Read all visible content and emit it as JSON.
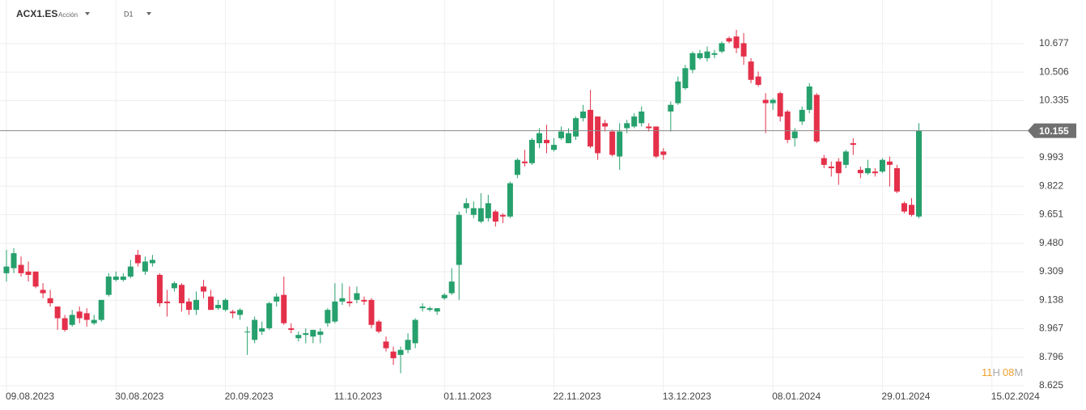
{
  "header": {
    "symbol": "ACX1.ES",
    "instrument_type": "Acción",
    "timeframe": "D1"
  },
  "countdown": {
    "hours": "11",
    "hours_unit": "H",
    "minutes": "08",
    "minutes_unit": "M"
  },
  "chart_data": {
    "type": "candlestick",
    "categories": [
      "09.08.2023",
      null,
      null,
      null,
      null,
      null,
      null,
      null,
      null,
      null,
      null,
      null,
      null,
      null,
      null,
      "30.08.2023",
      null,
      null,
      null,
      null,
      null,
      null,
      null,
      null,
      null,
      null,
      null,
      null,
      null,
      null,
      "20.09.2023",
      null,
      null,
      null,
      null,
      null,
      null,
      null,
      null,
      null,
      null,
      null,
      null,
      null,
      null,
      "11.10.2023",
      null,
      null,
      null,
      null,
      null,
      null,
      null,
      null,
      null,
      null,
      null,
      null,
      null,
      null,
      "01.11.2023",
      null,
      null,
      null,
      null,
      null,
      null,
      null,
      null,
      null,
      null,
      null,
      null,
      null,
      null,
      "22.11.2023",
      null,
      null,
      null,
      null,
      null,
      null,
      null,
      null,
      null,
      null,
      null,
      null,
      null,
      null,
      "13.12.2023",
      null,
      null,
      null,
      null,
      null,
      null,
      null,
      null,
      null,
      null,
      null,
      null,
      null,
      null,
      "08.01.2024",
      null,
      null,
      null,
      null,
      null,
      null,
      null,
      null,
      null,
      null,
      null,
      null,
      null,
      null,
      "29.01.2024",
      null,
      null,
      null,
      null,
      null,
      null,
      null,
      null,
      null,
      null,
      null,
      null,
      null,
      null,
      "15.02.2024"
    ],
    "open": [
      9.3,
      9.33,
      9.35,
      9.31,
      9.31,
      9.2,
      9.15,
      9.1,
      9.03,
      8.99,
      9.07,
      9.06,
      9.0,
      9.02,
      9.17,
      9.26,
      9.26,
      9.28,
      9.41,
      9.31,
      9.36,
      9.29,
      9.13,
      9.21,
      9.23,
      9.13,
      9.08,
      9.22,
      9.16,
      9.09,
      9.08,
      9.07,
      9.05,
      8.95,
      8.9,
      8.95,
      8.97,
      9.13,
      9.17,
      8.97,
      8.91,
      8.93,
      8.92,
      8.93,
      9.0,
      9.01,
      9.13,
      9.13,
      9.14,
      9.14,
      9.14,
      9.01,
      8.89,
      8.83,
      8.81,
      8.84,
      8.88,
      9.09,
      9.08,
      9.07,
      9.15,
      9.18,
      9.35,
      9.69,
      9.65,
      9.61,
      9.63,
      9.67,
      9.65,
      9.64,
      9.89,
      9.97,
      9.96,
      10.08,
      10.1,
      10.04,
      10.11,
      10.08,
      10.12,
      10.23,
      10.28,
      10.24,
      10.2,
      10.15,
      10.0,
      10.17,
      10.18,
      10.2,
      10.18,
      10.18,
      10.03,
      10.27,
      10.32,
      10.41,
      10.52,
      10.59,
      10.59,
      10.61,
      10.63,
      10.71,
      10.72,
      10.68,
      10.57,
      10.48,
      10.34,
      10.32,
      10.38,
      10.27,
      10.11,
      10.21,
      10.28,
      10.37,
      9.99,
      9.94,
      9.97,
      9.95,
      10.08,
      9.92,
      9.9,
      9.91,
      9.91,
      9.97,
      9.93,
      9.72,
      9.71,
      9.64,
      null,
      null,
      null,
      null,
      null,
      null,
      null,
      null,
      null,
      null
    ],
    "high": [
      9.44,
      9.45,
      9.4,
      9.37,
      9.31,
      9.24,
      9.2,
      9.1,
      9.05,
      9.08,
      9.1,
      9.09,
      9.05,
      9.14,
      9.3,
      9.31,
      9.3,
      9.38,
      9.44,
      9.4,
      9.41,
      9.3,
      9.2,
      9.25,
      9.24,
      9.15,
      9.19,
      9.26,
      9.2,
      9.14,
      9.15,
      9.08,
      9.09,
      8.98,
      9.04,
      9.01,
      9.13,
      9.18,
      9.28,
      9.0,
      8.95,
      8.97,
      8.96,
      8.97,
      9.09,
      9.24,
      9.24,
      9.22,
      9.22,
      9.16,
      9.15,
      9.02,
      8.92,
      8.86,
      8.86,
      8.94,
      9.03,
      9.12,
      9.1,
      9.09,
      9.18,
      9.33,
      9.67,
      9.75,
      9.73,
      9.78,
      9.77,
      9.68,
      9.66,
      9.85,
      9.99,
      10.04,
      10.11,
      10.17,
      10.19,
      10.11,
      10.18,
      10.17,
      10.24,
      10.31,
      10.4,
      10.24,
      10.22,
      10.16,
      10.2,
      10.22,
      10.26,
      10.3,
      10.2,
      10.18,
      10.05,
      10.33,
      10.48,
      10.55,
      10.63,
      10.64,
      10.66,
      10.64,
      10.69,
      10.72,
      10.76,
      10.74,
      10.59,
      10.51,
      10.38,
      10.35,
      10.39,
      10.28,
      10.17,
      10.3,
      10.44,
      10.38,
      10.01,
      9.97,
      9.99,
      10.04,
      10.11,
      9.94,
      9.98,
      9.93,
      9.99,
      10.0,
      9.95,
      9.73,
      9.75,
      10.2,
      null,
      null,
      null,
      null,
      null,
      null,
      null,
      null,
      null,
      null
    ],
    "low": [
      9.25,
      9.3,
      9.28,
      9.25,
      9.21,
      9.15,
      9.1,
      8.96,
      8.95,
      8.98,
      9.0,
      8.98,
      8.99,
      9.01,
      9.16,
      9.25,
      9.25,
      9.27,
      9.34,
      9.29,
      9.34,
      9.1,
      9.04,
      9.19,
      9.07,
      9.05,
      9.05,
      9.15,
      9.08,
      9.08,
      9.07,
      9.03,
      9.02,
      8.81,
      8.88,
      8.93,
      8.96,
      9.1,
      8.99,
      8.94,
      8.89,
      8.88,
      8.88,
      8.88,
      8.98,
      9.0,
      9.11,
      9.1,
      9.12,
      9.11,
      8.97,
      8.94,
      8.83,
      8.75,
      8.7,
      8.82,
      8.85,
      9.07,
      9.07,
      9.05,
      9.14,
      9.17,
      9.14,
      9.66,
      9.63,
      9.6,
      9.61,
      9.58,
      9.6,
      9.63,
      9.87,
      9.94,
      9.95,
      10.05,
      10.02,
      10.03,
      10.1,
      10.08,
      10.1,
      10.21,
      10.05,
      9.98,
      10.15,
      10.0,
      9.92,
      10.14,
      10.17,
      10.18,
      10.15,
      9.99,
      9.98,
      10.15,
      10.31,
      10.4,
      10.5,
      10.58,
      10.57,
      10.59,
      10.62,
      10.68,
      10.62,
      10.55,
      10.44,
      10.42,
      10.14,
      10.28,
      10.21,
      10.08,
      10.06,
      10.19,
      10.26,
      10.08,
      9.93,
      9.88,
      9.83,
      9.93,
      10.01,
      9.87,
      9.89,
      9.88,
      9.9,
      9.82,
      9.78,
      9.66,
      9.64,
      9.63,
      null,
      null,
      null,
      null,
      null,
      null,
      null,
      null,
      null,
      null
    ],
    "close": [
      9.34,
      9.42,
      9.3,
      9.29,
      9.22,
      9.18,
      9.12,
      9.03,
      8.96,
      9.05,
      9.03,
      9.02,
      9.02,
      9.14,
      9.28,
      9.28,
      9.28,
      9.34,
      9.36,
      9.37,
      9.38,
      9.12,
      9.12,
      9.24,
      9.12,
      9.08,
      9.14,
      9.19,
      9.08,
      9.11,
      9.14,
      9.06,
      9.08,
      8.95,
      9.02,
      8.97,
      9.12,
      9.16,
      9.0,
      8.96,
      8.93,
      8.94,
      8.96,
      8.95,
      9.08,
      9.13,
      9.15,
      9.12,
      9.18,
      9.13,
      8.99,
      8.95,
      8.85,
      8.79,
      8.84,
      8.9,
      9.02,
      9.1,
      9.09,
      9.09,
      9.17,
      9.25,
      9.65,
      9.72,
      9.69,
      9.69,
      9.72,
      9.61,
      9.64,
      9.84,
      9.98,
      9.96,
      10.1,
      10.14,
      10.08,
      10.07,
      10.15,
      10.14,
      10.23,
      10.27,
      10.06,
      10.02,
      10.18,
      10.01,
      10.15,
      10.2,
      10.24,
      10.27,
      10.17,
      10.0,
      10.01,
      10.31,
      10.45,
      10.53,
      10.62,
      10.62,
      10.63,
      10.62,
      10.68,
      10.69,
      10.65,
      10.6,
      10.46,
      10.43,
      10.32,
      10.34,
      10.24,
      10.1,
      10.15,
      10.28,
      10.42,
      10.09,
      9.95,
      9.93,
      9.9,
      10.03,
      10.07,
      9.9,
      9.93,
      9.9,
      9.98,
      9.95,
      9.79,
      9.67,
      9.65,
      10.155,
      null,
      null,
      null,
      null,
      null,
      null,
      null,
      null,
      null,
      null
    ],
    "up_color": "#26a06c",
    "down_color": "#e4304a",
    "current_price": 10.155,
    "ylim": [
      8.591,
      10.939
    ],
    "yticks": [
      8.625,
      8.796,
      8.967,
      9.138,
      9.309,
      {
        "value": 9.48,
        "label": "9.480"
      },
      9.651,
      9.822,
      9.993,
      10.335,
      10.506,
      10.677
    ],
    "grid": true
  }
}
